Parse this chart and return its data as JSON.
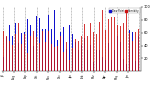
{
  "background_color": "#ffffff",
  "ylim": [
    0,
    100
  ],
  "ytick_vals": [
    20,
    40,
    60,
    80,
    100
  ],
  "ytick_labels": [
    "20",
    "40",
    "60",
    "80",
    "100"
  ],
  "legend_blue_label": "Dew Point",
  "legend_red_label": "Humidity",
  "blue_color": "#1111cc",
  "red_color": "#cc1111",
  "grid_color": "#999999",
  "n_points": 365,
  "bar_width": 0.4,
  "seed_blue": 10,
  "seed_red": 99,
  "n_months": 13
}
